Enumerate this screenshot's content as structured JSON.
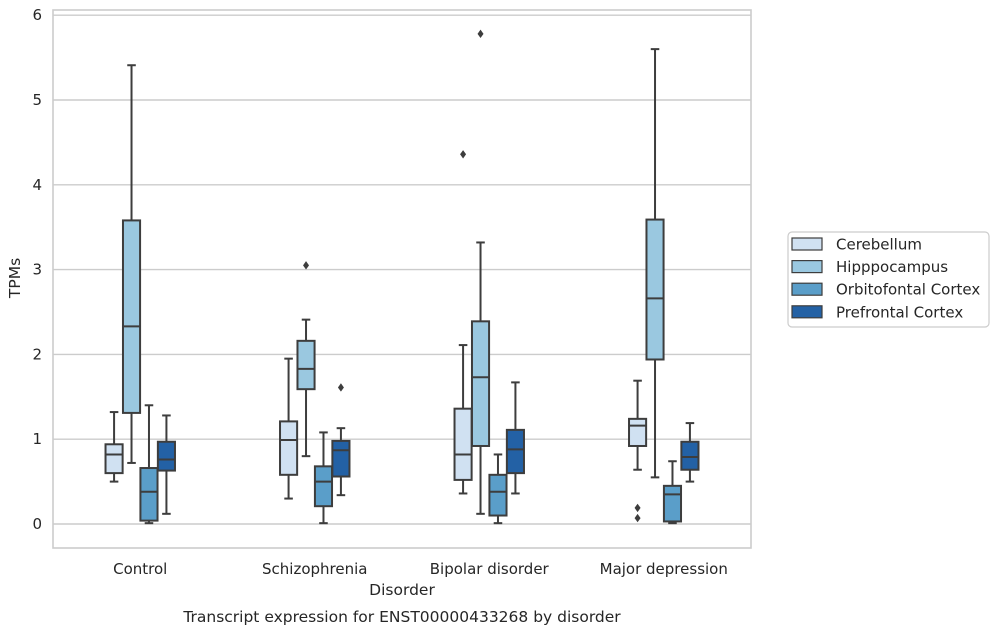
{
  "chart_data": {
    "type": "boxplot",
    "caption": "Transcript expression for ENST00000433268 by disorder",
    "xlabel": "Disorder",
    "ylabel": "TPMs",
    "ylim": [
      -0.28,
      6.1
    ],
    "yticks": [
      0,
      1,
      2,
      3,
      4,
      5,
      6
    ],
    "categories": [
      "Control",
      "Schizophrenia",
      "Bipolar disorder",
      "Major depression"
    ],
    "grid": "horizontal",
    "legend_position": "right",
    "series": [
      {
        "name": "Cerebellum",
        "color": "#d0e1f2",
        "boxes": [
          {
            "whislo": 0.5,
            "q1": 0.6,
            "med": 0.82,
            "q3": 0.94,
            "whishi": 1.32,
            "fliers": []
          },
          {
            "whislo": 0.3,
            "q1": 0.58,
            "med": 0.99,
            "q3": 1.21,
            "whishi": 1.95,
            "fliers": []
          },
          {
            "whislo": 0.36,
            "q1": 0.52,
            "med": 0.82,
            "q3": 1.36,
            "whishi": 2.11,
            "fliers": [
              4.36
            ]
          },
          {
            "whislo": 0.64,
            "q1": 0.92,
            "med": 1.16,
            "q3": 1.24,
            "whishi": 1.69,
            "fliers": [
              0.19,
              0.07
            ]
          }
        ]
      },
      {
        "name": "Hipppocampus",
        "color": "#9ac8e0",
        "boxes": [
          {
            "whislo": 0.72,
            "q1": 1.31,
            "med": 2.33,
            "q3": 3.58,
            "whishi": 5.41,
            "fliers": []
          },
          {
            "whislo": 0.8,
            "q1": 1.59,
            "med": 1.83,
            "q3": 2.16,
            "whishi": 2.41,
            "fliers": [
              3.05
            ]
          },
          {
            "whislo": 0.12,
            "q1": 0.92,
            "med": 1.73,
            "q3": 2.39,
            "whishi": 3.32,
            "fliers": [
              5.78
            ]
          },
          {
            "whislo": 0.55,
            "q1": 1.94,
            "med": 2.66,
            "q3": 3.59,
            "whishi": 5.6,
            "fliers": []
          }
        ]
      },
      {
        "name": "Orbitofontal Cortex",
        "color": "#5a9ec9",
        "boxes": [
          {
            "whislo": 0.01,
            "q1": 0.04,
            "med": 0.38,
            "q3": 0.66,
            "whishi": 1.4,
            "fliers": []
          },
          {
            "whislo": 0.01,
            "q1": 0.21,
            "med": 0.5,
            "q3": 0.68,
            "whishi": 1.08,
            "fliers": []
          },
          {
            "whislo": 0.01,
            "q1": 0.1,
            "med": 0.38,
            "q3": 0.58,
            "whishi": 0.82,
            "fliers": []
          },
          {
            "whislo": 0.01,
            "q1": 0.03,
            "med": 0.35,
            "q3": 0.45,
            "whishi": 0.74,
            "fliers": []
          }
        ]
      },
      {
        "name": "Prefrontal Cortex",
        "color": "#2361a5",
        "boxes": [
          {
            "whislo": 0.12,
            "q1": 0.63,
            "med": 0.76,
            "q3": 0.97,
            "whishi": 1.28,
            "fliers": []
          },
          {
            "whislo": 0.34,
            "q1": 0.56,
            "med": 0.87,
            "q3": 0.98,
            "whishi": 1.13,
            "fliers": [
              1.61
            ]
          },
          {
            "whislo": 0.36,
            "q1": 0.6,
            "med": 0.88,
            "q3": 1.11,
            "whishi": 1.67,
            "fliers": []
          },
          {
            "whislo": 0.5,
            "q1": 0.64,
            "med": 0.79,
            "q3": 0.97,
            "whishi": 1.19,
            "fliers": []
          }
        ]
      }
    ]
  }
}
